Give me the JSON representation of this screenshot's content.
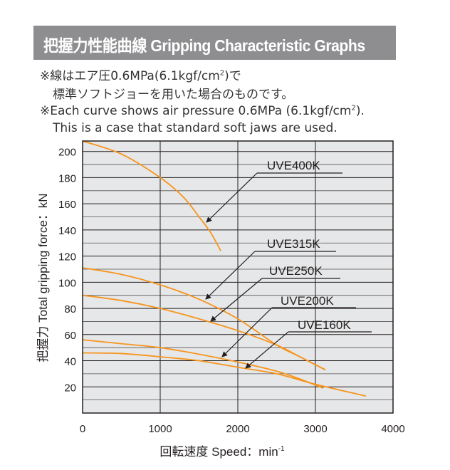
{
  "header": {
    "title": "把握力性能曲線  Gripping Characteristic Graphs"
  },
  "notes": {
    "jp_line1": "※線はエア圧0.6MPa(6.1kgf/cm",
    "jp_line1_sup": "2",
    "jp_line1_end": ")で",
    "jp_line2": "標準ソフトジョーを用いた場合のものです。",
    "en_line1": "※Each curve shows air pressure 0.6MPa (6.1kgf/cm",
    "en_line1_sup": "2",
    "en_line1_end": ").",
    "en_line2": "This is a case that standard soft jaws are used."
  },
  "chart_data": {
    "type": "line",
    "title": "Gripping Characteristic Graphs",
    "xlabel": "回転速度 Speed：min",
    "xlabel_sup": "-1",
    "ylabel": "把握力  Total gripping force：kN",
    "xlim": [
      0,
      4000
    ],
    "ylim": [
      0,
      208
    ],
    "xticks": [
      0,
      1000,
      2000,
      3000,
      4000
    ],
    "yticks": [
      20,
      40,
      60,
      80,
      100,
      120,
      140,
      160,
      180,
      200
    ],
    "grid": true,
    "line_color": "#f7941d",
    "series": [
      {
        "name": "UVE400K",
        "x": [
          0,
          500,
          1000,
          1300,
          1500,
          1650,
          1780
        ],
        "y": [
          208,
          198,
          180,
          165,
          150,
          138,
          124
        ]
      },
      {
        "name": "UVE315K",
        "x": [
          0,
          500,
          1000,
          1500,
          2000,
          2500,
          2800,
          3130
        ],
        "y": [
          111,
          106,
          98,
          87,
          72,
          52,
          43,
          33
        ]
      },
      {
        "name": "UVE250K",
        "x": [
          0,
          500,
          1000,
          1500,
          2000,
          2500,
          2800,
          3130
        ],
        "y": [
          90,
          86,
          80,
          72,
          63,
          52,
          43,
          33
        ]
      },
      {
        "name": "UVE200K",
        "x": [
          0,
          500,
          1000,
          1500,
          2000,
          2500,
          2800,
          3100
        ],
        "y": [
          56,
          53,
          50,
          45,
          39,
          32,
          26,
          19
        ]
      },
      {
        "name": "UVE160K",
        "x": [
          0,
          500,
          1000,
          1500,
          2000,
          2500,
          3000,
          3650
        ],
        "y": [
          46,
          45.5,
          43,
          40,
          35,
          30,
          22,
          13
        ]
      }
    ]
  }
}
